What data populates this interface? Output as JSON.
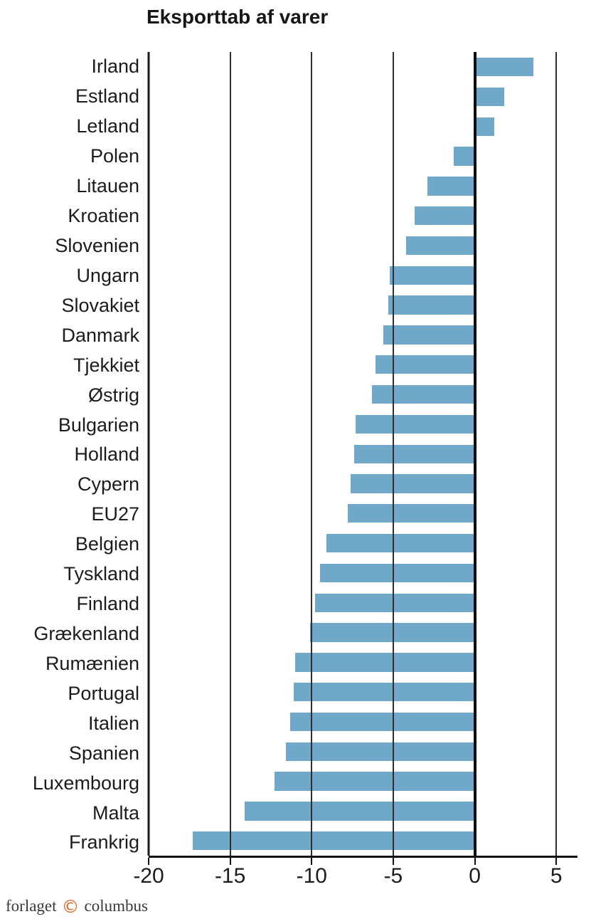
{
  "title": "Eksporttab af varer",
  "footer": {
    "publisher_prefix": "forlaget",
    "copyright_symbol": "©",
    "publisher_name": "columbus"
  },
  "colors": {
    "bar": "#6FA8C8",
    "gridline": "#2e2e2e",
    "zero_line": "#0d0d0d",
    "axis": "#111111",
    "text": "#1c1c1c",
    "copyright_mark": "#E0662C"
  },
  "chart_data": {
    "type": "bar",
    "orientation": "horizontal",
    "title": "Eksporttab af varer",
    "categories": [
      "Irland",
      "Estland",
      "Letland",
      "Polen",
      "Litauen",
      "Kroatien",
      "Slovenien",
      "Ungarn",
      "Slovakiet",
      "Danmark",
      "Tjekkiet",
      "Østrig",
      "Bulgarien",
      "Holland",
      "Cypern",
      "EU27",
      "Belgien",
      "Tyskland",
      "Finland",
      "Grækenland",
      "Rumænien",
      "Portugal",
      "Italien",
      "Spanien",
      "Luxembourg",
      "Malta",
      "Frankrig"
    ],
    "values": [
      3.6,
      1.8,
      1.2,
      -1.3,
      -2.9,
      -3.7,
      -4.2,
      -5.2,
      -5.3,
      -5.6,
      -6.1,
      -6.3,
      -7.3,
      -7.4,
      -7.6,
      -7.8,
      -9.1,
      -9.5,
      -9.8,
      -10.1,
      -11.0,
      -11.1,
      -11.3,
      -11.6,
      -12.3,
      -14.1,
      -17.3
    ],
    "x_ticks": [
      -20,
      -15,
      -10,
      -5,
      0,
      5
    ],
    "xlim": [
      -20,
      6.3
    ],
    "xlabel": "",
    "ylabel": "",
    "grid": true,
    "legend": false,
    "sorted": "descending"
  }
}
